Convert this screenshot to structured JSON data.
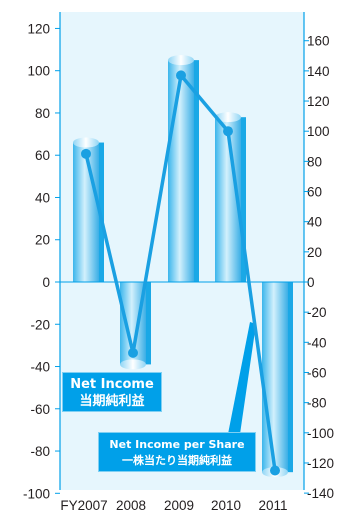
{
  "chart_data": {
    "type": "bar",
    "categories": [
      "FY2007",
      "2008",
      "2009",
      "2010",
      "2011"
    ],
    "series": [
      {
        "name": "Net Income 当期純利益",
        "type": "bar",
        "axis": "left",
        "values": [
          66,
          -39,
          105,
          78,
          -90
        ]
      },
      {
        "name": "Net Income per Share 一株当たり当期純利益",
        "type": "line",
        "axis": "right",
        "values": [
          85,
          -47,
          137,
          100,
          -125
        ]
      }
    ],
    "left_axis": {
      "ylim": [
        -100,
        120
      ],
      "ticks": [
        -100,
        -80,
        -60,
        -40,
        -20,
        0,
        20,
        40,
        60,
        80,
        100,
        120
      ]
    },
    "right_axis": {
      "ylim": [
        -140,
        170
      ],
      "ticks": [
        -140,
        -120,
        -100,
        -80,
        -60,
        -40,
        -20,
        0,
        20,
        40,
        60,
        80,
        100,
        120,
        140,
        160
      ]
    },
    "legend": {
      "net_income_line1": "Net Income",
      "net_income_line2": "当期純利益",
      "eps_line1": "Net Income per Share",
      "eps_line2": "一株当たり当期純利益"
    },
    "colors": {
      "plot_background": "#e6f6fd",
      "axis": "#00a0e9",
      "bar_dark": "#1aa8e6",
      "bar_light": "#b8e6fa",
      "line": "#1aa0e2",
      "callout": "#00a0e9"
    }
  }
}
